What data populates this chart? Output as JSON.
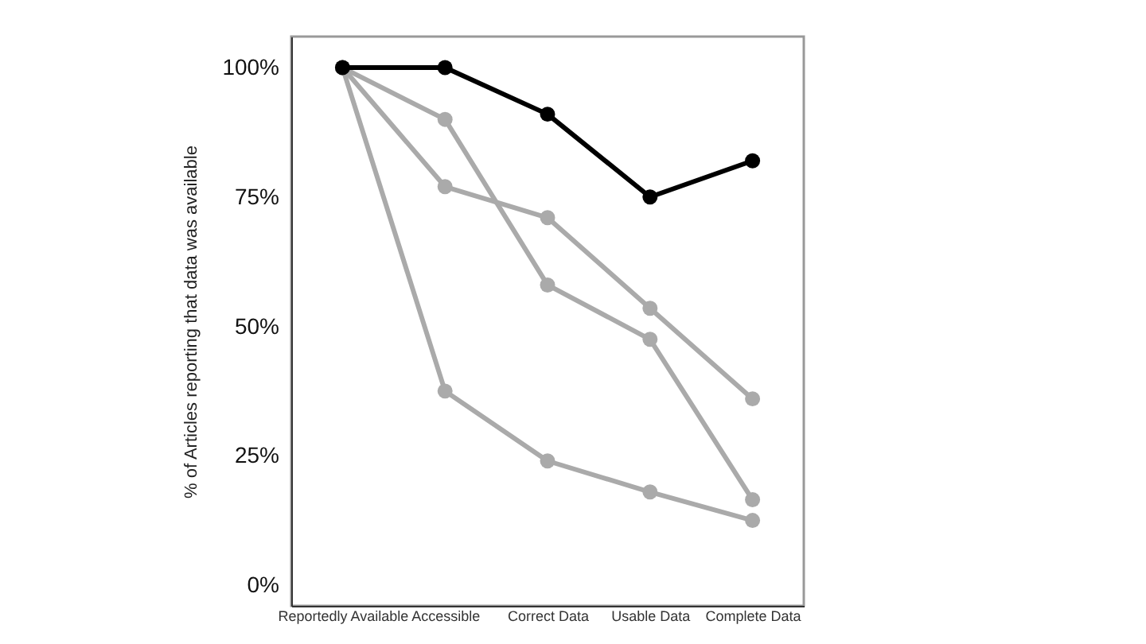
{
  "chart_data": {
    "type": "line",
    "ylabel": "% of Articles reporting that data was available",
    "categories": [
      "Reportedly Available",
      "Accessible",
      "Correct Data",
      "Usable Data",
      "Complete Data"
    ],
    "series": [
      {
        "color": "#aaaaaa",
        "values": [
          100,
          90,
          58,
          47.5,
          16.5
        ]
      },
      {
        "color": "#aaaaaa",
        "values": [
          100,
          77,
          71,
          53.5,
          36
        ]
      },
      {
        "color": "#aaaaaa",
        "values": [
          100,
          37.5,
          24,
          18,
          12.5
        ]
      },
      {
        "color": "#000000",
        "values": [
          100,
          100,
          91,
          75,
          82
        ]
      }
    ],
    "ylim": [
      -4,
      106
    ],
    "yticks": [
      {
        "value": 0,
        "label": "0%"
      },
      {
        "value": 25,
        "label": "25%"
      },
      {
        "value": 50,
        "label": "50%"
      },
      {
        "value": 75,
        "label": "75%"
      },
      {
        "value": 100,
        "label": "100%"
      }
    ],
    "marker": "circle",
    "line_style": "solid"
  }
}
